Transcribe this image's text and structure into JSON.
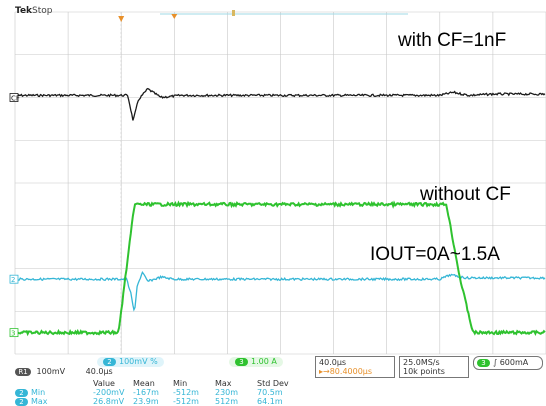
{
  "status": {
    "brand": "Tek",
    "state": "Stop"
  },
  "annotations": {
    "ch1": "with CF=1nF",
    "ch2": "without CF",
    "ch3": "IOUT=0A~1.5A"
  },
  "channel_labels": {
    "ch1": "CF",
    "ch2": "2",
    "ch3": "3"
  },
  "readout": {
    "ch2_scale": "100mV %",
    "ch3_scale": "1.00 A",
    "ch1_row": {
      "ch": "R1",
      "volts": "100mV",
      "time": "40.0µs"
    },
    "timebase": {
      "per_div": "40.0µs",
      "position": "80.4000µs"
    },
    "sampling": {
      "rate": "25.0MS/s",
      "points": "10k points"
    },
    "trigger": {
      "channel": "3",
      "level": "600mA"
    },
    "measure_headers": [
      "Value",
      "Mean",
      "Min",
      "Max",
      "Std Dev"
    ],
    "measurements": [
      {
        "label": "Min",
        "values": [
          "-200mV",
          "-167m",
          "-512m",
          "230m",
          "70.5m"
        ]
      },
      {
        "label": "Max",
        "values": [
          "26.8mV",
          "23.9m",
          "-512m",
          "512m",
          "64.1m"
        ]
      }
    ]
  },
  "colors": {
    "ch1": "#1a1a1a",
    "ch2": "#35b6d6",
    "ch3": "#2fc22f",
    "grid": "#c8c8c8",
    "trigger_marker": "#e8902a"
  },
  "chart_data": {
    "type": "line",
    "title": "",
    "xlabel": "",
    "ylabel": "",
    "x_unit": "µs",
    "xlim": [
      -80,
      320
    ],
    "ylim_div": [
      -4,
      4
    ],
    "grid": true,
    "series": [
      {
        "name": "with CF=1nF",
        "unit": "div",
        "x": [
          -80,
          0,
          5,
          9,
          13,
          20,
          30,
          45,
          80,
          160,
          240,
          250,
          262,
          280,
          320
        ],
        "values": [
          0.05,
          0.05,
          0.05,
          -0.55,
          -0.05,
          0.2,
          0.0,
          0.05,
          0.05,
          0.05,
          0.05,
          0.12,
          0.05,
          0.08,
          0.08
        ]
      },
      {
        "x": [
          -80,
          0,
          4,
          7,
          10,
          12,
          16,
          20,
          30,
          40,
          80,
          160,
          240,
          248,
          260,
          320
        ],
        "values": [
          -2.25,
          -2.25,
          -2.25,
          -2.55,
          -3.05,
          -2.4,
          -2.1,
          -2.3,
          -2.2,
          -2.25,
          -2.25,
          -2.25,
          -2.25,
          -2.15,
          -2.22,
          -2.22
        ],
        "unit": "div"
      },
      {
        "name": "IOUT=0A~1.5A",
        "unit": "A",
        "x": [
          -80,
          -2,
          10,
          20,
          245,
          255,
          265,
          320
        ],
        "values": [
          0.0,
          0.0,
          1.5,
          1.5,
          1.5,
          0.65,
          0.0,
          0.0
        ]
      }
    ]
  }
}
